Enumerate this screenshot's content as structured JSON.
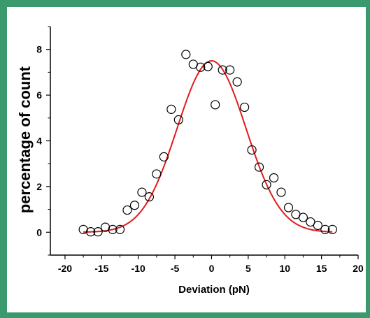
{
  "frame_color": "#3a9a6e",
  "chart_data": {
    "type": "scatter",
    "xlabel": "Deviation  (pN)",
    "ylabel": "percentage of count",
    "xlim": [
      -22,
      20
    ],
    "ylim": [
      -1,
      9
    ],
    "x_ticks": [
      -20,
      -15,
      -10,
      -5,
      0,
      5,
      10,
      15,
      20
    ],
    "y_ticks": [
      0,
      2,
      4,
      6,
      8
    ],
    "grid": false,
    "legend": "none",
    "series": [
      {
        "style": "open-circle",
        "color": "#000000",
        "points": [
          [
            -17.5,
            0.12
          ],
          [
            -16.5,
            0.02
          ],
          [
            -15.5,
            0.02
          ],
          [
            -14.5,
            0.22
          ],
          [
            -13.5,
            0.12
          ],
          [
            -12.5,
            0.12
          ],
          [
            -11.5,
            0.97
          ],
          [
            -10.5,
            1.18
          ],
          [
            -9.5,
            1.75
          ],
          [
            -8.5,
            1.55
          ],
          [
            -7.5,
            2.55
          ],
          [
            -6.5,
            3.3
          ],
          [
            -5.5,
            5.38
          ],
          [
            -4.5,
            4.92
          ],
          [
            -3.5,
            7.78
          ],
          [
            -2.5,
            7.35
          ],
          [
            -1.5,
            7.22
          ],
          [
            -0.5,
            7.25
          ],
          [
            0.5,
            5.58
          ],
          [
            1.5,
            7.1
          ],
          [
            2.5,
            7.1
          ],
          [
            3.5,
            6.58
          ],
          [
            4.5,
            5.47
          ],
          [
            5.5,
            3.6
          ],
          [
            6.5,
            2.85
          ],
          [
            7.5,
            2.08
          ],
          [
            8.5,
            2.38
          ],
          [
            9.5,
            1.75
          ],
          [
            10.5,
            1.08
          ],
          [
            11.5,
            0.78
          ],
          [
            12.5,
            0.65
          ],
          [
            13.5,
            0.45
          ],
          [
            14.5,
            0.3
          ],
          [
            15.5,
            0.12
          ],
          [
            16.5,
            0.12
          ]
        ]
      },
      {
        "style": "line",
        "color": "#e31a1c",
        "fit": "gaussian",
        "peak": 7.5,
        "center": 0,
        "sigma": 4.7,
        "x_range": [
          -17.5,
          16.5
        ]
      }
    ]
  }
}
